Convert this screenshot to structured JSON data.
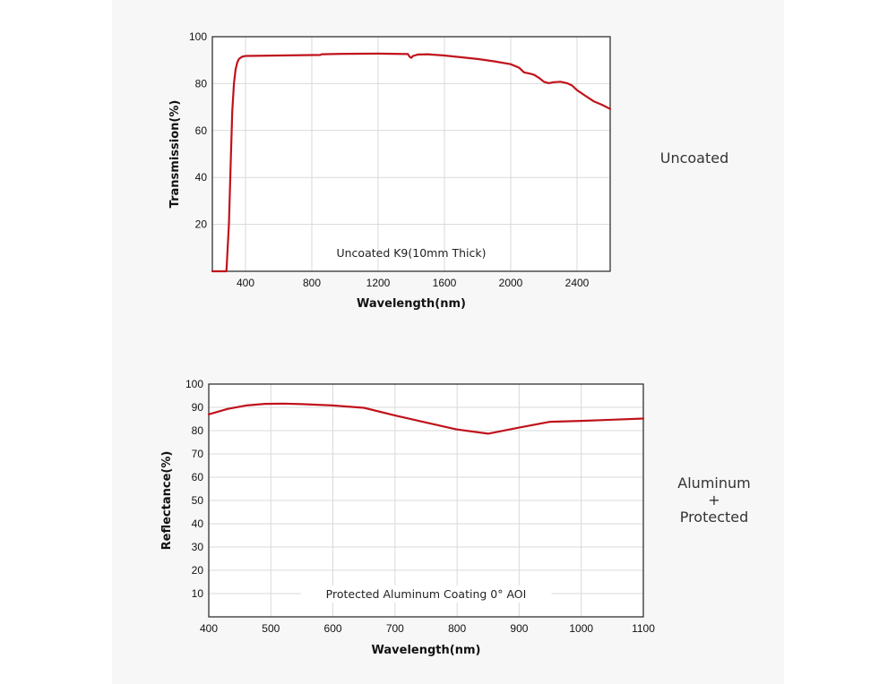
{
  "side_labels": {
    "top": "Uncoated",
    "bottom_lines": [
      "Aluminum",
      "+",
      "Protected"
    ]
  },
  "colors": {
    "line": "#c0121b",
    "grid": "#d9d9d9",
    "axis": "#222222",
    "panel": "#f7f7f8"
  },
  "chart_data": [
    {
      "type": "line",
      "annotation": "Uncoated K9(10mm Thick)",
      "xlabel": "Wavelength(nm)",
      "ylabel": "Transmission(%)",
      "xlim": [
        200,
        2600
      ],
      "ylim": [
        0,
        100
      ],
      "xticks": [
        400,
        800,
        1200,
        1600,
        2000,
        2400
      ],
      "yticks": [
        20,
        40,
        60,
        80,
        100
      ],
      "grid": true,
      "series": [
        {
          "x": [
            200,
            285,
            300,
            310,
            320,
            330,
            340,
            350,
            360,
            380,
            400,
            600,
            850,
            860,
            1000,
            1200,
            1380,
            1390,
            1400,
            1410,
            1440,
            1500,
            1600,
            1800,
            1900,
            2000,
            2050,
            2080,
            2120,
            2140,
            2170,
            2200,
            2230,
            2260,
            2300,
            2340,
            2370,
            2400,
            2450,
            2500,
            2550,
            2600
          ],
          "y": [
            0,
            0,
            20,
            45,
            68,
            80,
            86,
            89,
            90.5,
            91.5,
            91.8,
            92,
            92.2,
            92.5,
            92.7,
            92.8,
            92.6,
            91.5,
            91,
            91.8,
            92.4,
            92.5,
            92,
            90.5,
            89.5,
            88.3,
            86.8,
            84.8,
            84.2,
            83.8,
            82.5,
            80.8,
            80.2,
            80.6,
            80.8,
            80.2,
            79.2,
            77.2,
            74.8,
            72.5,
            71,
            69.2
          ]
        }
      ]
    },
    {
      "type": "line",
      "annotation": "Protected Aluminum Coating  0°  AOI",
      "xlabel": "Wavelength(nm)",
      "ylabel": "Reflectance(%)",
      "xlim": [
        400,
        1100
      ],
      "ylim": [
        0,
        100
      ],
      "xticks": [
        400,
        500,
        600,
        700,
        800,
        900,
        1000,
        1100
      ],
      "yticks": [
        10,
        20,
        30,
        40,
        50,
        60,
        70,
        80,
        90,
        100
      ],
      "grid": true,
      "series": [
        {
          "x": [
            400,
            430,
            460,
            490,
            520,
            550,
            600,
            650,
            700,
            750,
            800,
            850,
            900,
            950,
            1000,
            1050,
            1100
          ],
          "y": [
            87,
            89.3,
            90.8,
            91.5,
            91.6,
            91.4,
            90.8,
            89.8,
            86.5,
            83.5,
            80.5,
            78.7,
            81.3,
            83.8,
            84.2,
            84.7,
            85.2
          ]
        }
      ]
    }
  ]
}
